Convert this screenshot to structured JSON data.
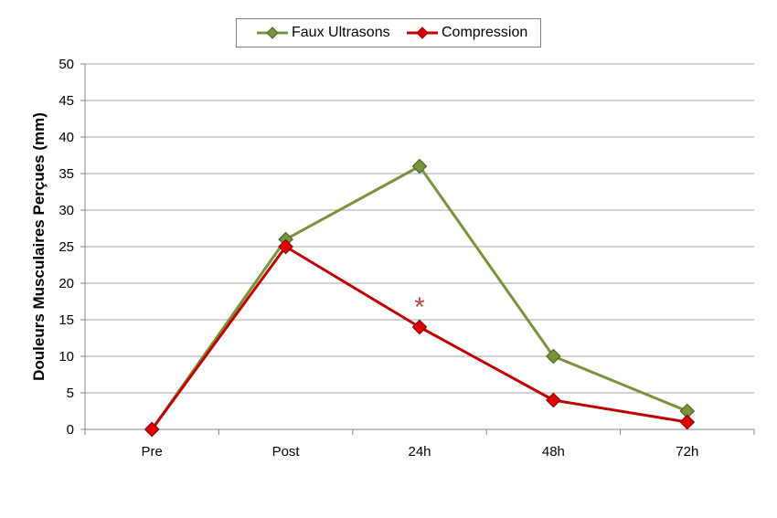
{
  "chart_data": {
    "type": "line",
    "categories": [
      "Pre",
      "Post",
      "24h",
      "48h",
      "72h"
    ],
    "series": [
      {
        "name": "Faux Ultrasons",
        "values": [
          0,
          26,
          36,
          10,
          2.5
        ],
        "color": "#77933c",
        "marker_fill": "#77933c"
      },
      {
        "name": "Compression",
        "values": [
          0,
          25,
          14,
          4,
          1
        ],
        "color": "#c00000",
        "marker_fill": "#e00000"
      }
    ],
    "ylabel": "Douleurs Musculaires Perçues (mm)",
    "xlabel": "",
    "ylim": [
      0,
      50
    ],
    "yticks": [
      "0",
      "5",
      "10",
      "15",
      "20",
      "25",
      "30",
      "35",
      "40",
      "45",
      "50"
    ],
    "grid": true,
    "legend_position": "top",
    "annotations": [
      {
        "text": "*",
        "category": "24h",
        "value": 18
      }
    ]
  }
}
